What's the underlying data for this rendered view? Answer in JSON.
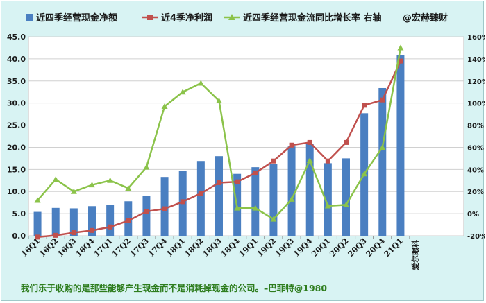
{
  "chart_data": {
    "type": "bar",
    "categories": [
      "16Q1",
      "16Q2",
      "16Q3",
      "16Q4",
      "17Q1",
      "17Q2",
      "17Q3",
      "17Q4",
      "18Q1",
      "18Q2",
      "18Q3",
      "18Q4",
      "19Q1",
      "19Q2",
      "19Q3",
      "19Q4",
      "20Q1",
      "20Q2",
      "20Q3",
      "20Q4",
      "21Q1"
    ],
    "series": [
      {
        "name": "近四季经营现金净额",
        "kind": "bar",
        "axis": "left",
        "color": "#4a7fc1",
        "values": [
          5.4,
          6.3,
          6.2,
          6.7,
          7.0,
          7.8,
          9.0,
          13.3,
          14.6,
          16.9,
          18.0,
          14.0,
          15.5,
          16.2,
          20.2,
          20.8,
          16.4,
          17.5,
          27.7,
          33.4,
          40.9
        ]
      },
      {
        "name": "近4季净利润",
        "kind": "line",
        "axis": "left",
        "color": "#c0504d",
        "values": [
          -0.3,
          0.1,
          0.7,
          1.2,
          2.0,
          3.4,
          5.5,
          6.1,
          7.7,
          9.6,
          12.0,
          12.2,
          14.2,
          16.9,
          20.5,
          21.1,
          16.9,
          21.1,
          29.5,
          30.7,
          39.5
        ]
      },
      {
        "name": "近四季经营现金流同比增长率 右轴",
        "kind": "line",
        "axis": "right",
        "color": "#8bc34a",
        "values": [
          0.12,
          0.31,
          0.2,
          0.26,
          0.3,
          0.23,
          0.42,
          0.97,
          1.1,
          1.18,
          1.02,
          0.05,
          0.05,
          -0.05,
          0.13,
          0.48,
          0.07,
          0.08,
          0.36,
          0.6,
          1.5
        ]
      }
    ],
    "left_axis": {
      "min": 0,
      "max": 45,
      "step": 5,
      "ticks": [
        "0.0",
        "5.0",
        "10.0",
        "15.0",
        "20.0",
        "25.0",
        "30.0",
        "35.0",
        "40.0",
        "45.0"
      ]
    },
    "right_axis": {
      "min": -0.2,
      "max": 1.6,
      "step": 0.2,
      "ticks": [
        "-20%",
        "0%",
        "20%",
        "40%",
        "60%",
        "80%",
        "100%",
        "120%",
        "140%",
        "160%"
      ]
    },
    "grid": true,
    "legend": "top",
    "watermark": "@宏赫臻财",
    "x_extra_label": "爱尔眼科",
    "footer": "我们乐于收购的是那些能够产生现金而不是消耗掉现金的公司。–巴菲特@1980"
  }
}
